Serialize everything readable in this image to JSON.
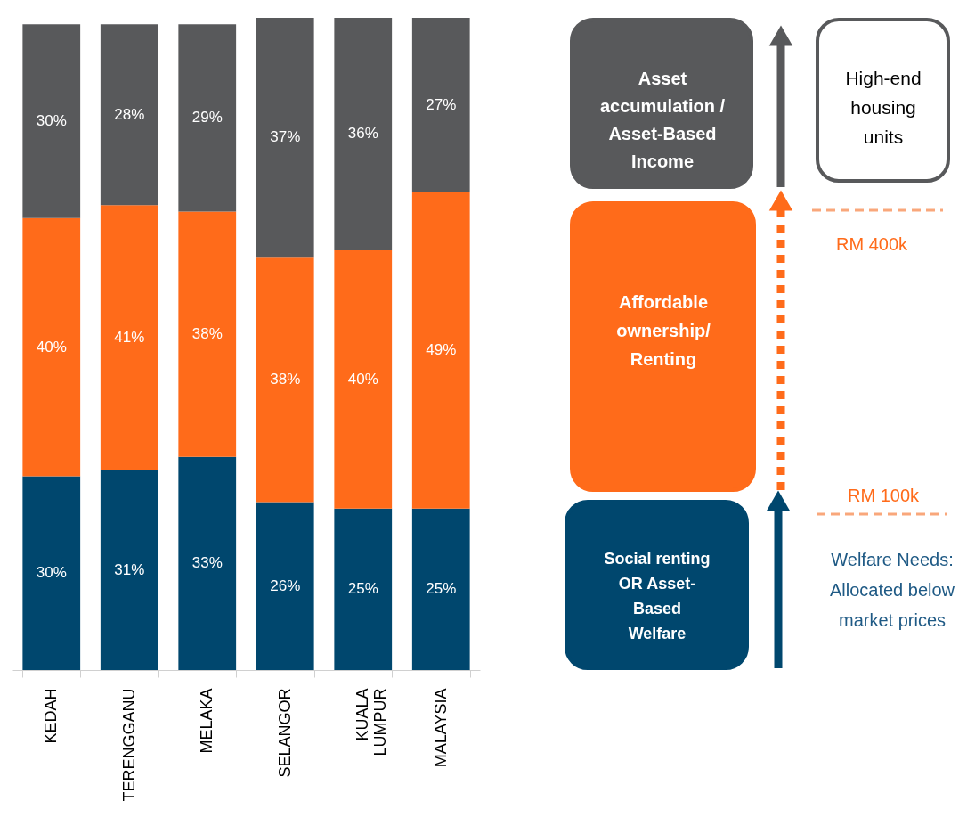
{
  "chart_data": [
    {
      "type": "bar",
      "stacked": true,
      "legend": false,
      "grid": false,
      "tick_labels": "x",
      "categories": [
        "KEDAH",
        "TERENGGANU",
        "MELAKA",
        "SELANGOR",
        "KUALA LUMPUR",
        "MALAYSIA"
      ],
      "series": [
        {
          "color": "#00476e",
          "values": [
            30,
            31,
            33,
            26,
            25,
            25
          ],
          "value_labels": [
            "30%",
            "31%",
            "33%",
            "26%",
            "25%",
            "25%"
          ]
        },
        {
          "color": "#ff6b1a",
          "values": [
            40,
            41,
            38,
            38,
            40,
            49
          ],
          "value_labels": [
            "40%",
            "41%",
            "38%",
            "38%",
            "40%",
            "49%"
          ]
        },
        {
          "color": "#58595b",
          "values": [
            30,
            28,
            29,
            37,
            36,
            27
          ],
          "value_labels": [
            "30%",
            "28%",
            "29%",
            "37%",
            "36%",
            "27%"
          ]
        }
      ]
    },
    {
      "type": "other",
      "annotations": [
        "Asset\naccumulation /\nAsset-Based\nIncome",
        "Affordable\nownership/\n\nRenting",
        "Social renting\nOR Asset-\nBased\nWelfare",
        "High-end\nhousing\nunits",
        "RM 400k",
        "RM 100k",
        "Welfare Needs:\nAllocated below\nmarket prices"
      ]
    }
  ]
}
